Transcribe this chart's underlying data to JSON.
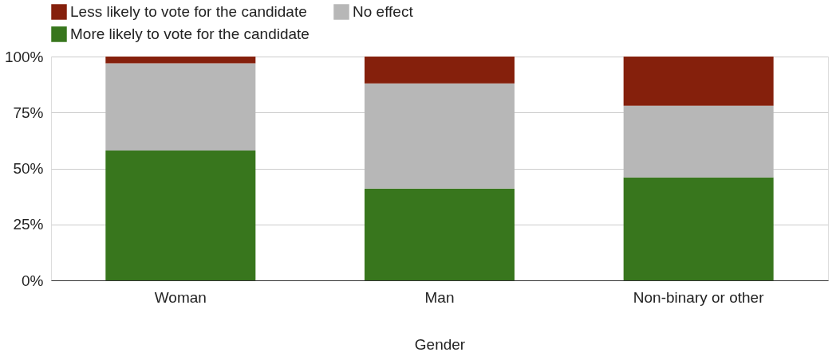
{
  "chart_data": {
    "type": "bar",
    "stacked": true,
    "xlabel": "Gender",
    "categories": [
      "Woman",
      "Man",
      "Non-binary or other"
    ],
    "series": [
      {
        "name": "More likely to vote for the candidate",
        "color": "#38761d",
        "values": [
          58,
          41,
          46
        ]
      },
      {
        "name": "No effect",
        "color": "#b7b7b7",
        "values": [
          39,
          47,
          32
        ]
      },
      {
        "name": "Less likely to vote for the candidate",
        "color": "#85200c",
        "values": [
          3,
          12,
          22
        ]
      }
    ],
    "ylim": [
      0,
      100
    ],
    "yticks": [
      {
        "value": 0,
        "label": "0%"
      },
      {
        "value": 25,
        "label": "25%"
      },
      {
        "value": 50,
        "label": "50%"
      },
      {
        "value": 75,
        "label": "75%"
      },
      {
        "value": 100,
        "label": "100%"
      }
    ],
    "grid": "y",
    "legend": "top"
  }
}
